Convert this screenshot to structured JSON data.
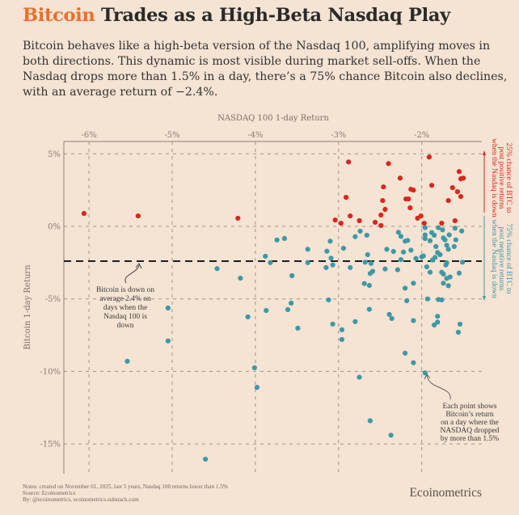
{
  "title": {
    "accent": "Bitcoin",
    "rest": " Trades as a High-Beta Nasdaq Play"
  },
  "subtitle": "Bitcoin behaves like a high-beta version of the Nasdaq 100, amplifying moves in both directions. This dynamic is most visible during market sell-offs. When the Nasdaq drops more than 1.5% in a day, there’s a 75% chance Bitcoin also declines, with an average return of −2.4%.",
  "colors": {
    "background": "#f5e3d3",
    "accent": "#e8702a",
    "positive": "#d9271c",
    "negative": "#3e98a6",
    "mean_line": "#1e1e1e"
  },
  "annotations": {
    "mean": [
      "Bitcoin is down on",
      "average 2.4% on",
      "days when the",
      "Nasdaq 100 is",
      "down"
    ],
    "point": [
      "Each point shows",
      "Bitcoin’s return",
      "on a day where the",
      "NASDAQ dropped",
      "by more than 1.5%"
    ],
    "positive_side": [
      "25% chance of BTC to",
      "post positive returns",
      "when the Nasdaq is down"
    ],
    "negative_side": [
      "75% chance of BTC to",
      "post negative returns",
      "when the Nasdaq is down"
    ]
  },
  "footer": {
    "notes": "Notes: created on November 01, 2025, last 5 years, Nasdaq 100 returns lower than 1.5%",
    "source": "Source: Ecoinometrics",
    "by": "By: @ecoinometrics, ecoinometrics.substack.com",
    "brand": "Ecoinometrics"
  },
  "chart_data": {
    "type": "scatter",
    "xlabel": "NASDAQ 100 1-day Return",
    "ylabel": "Bitcoin 1-day Return",
    "x_axis_position": "top",
    "xlim": [
      -6.35,
      -1.3
    ],
    "ylim": [
      -16.8,
      5.8
    ],
    "x_ticks": [
      -6,
      -5,
      -4,
      -3,
      -2
    ],
    "x_tick_labels": [
      "-6%",
      "-5%",
      "-4%",
      "-3%",
      "-2%"
    ],
    "y_ticks": [
      5,
      0,
      -5,
      -10,
      -15
    ],
    "y_tick_labels": [
      "5%",
      "0%",
      "-5%",
      "-10%",
      "-15%"
    ],
    "grid": true,
    "mean_line": -2.4,
    "series": [
      {
        "color": "#d9271c",
        "points": [
          [
            -6.06,
            0.89
          ],
          [
            -5.41,
            0.72
          ],
          [
            -4.21,
            0.56
          ],
          [
            -3.04,
            0.44
          ],
          [
            -2.97,
            0.22
          ],
          [
            -2.88,
            4.44
          ],
          [
            -2.91,
            2.0
          ],
          [
            -2.86,
            0.72
          ],
          [
            -2.75,
            0.39
          ],
          [
            -2.56,
            0.28
          ],
          [
            -2.49,
            0.78
          ],
          [
            -2.49,
            0.06
          ],
          [
            -2.47,
            1.78
          ],
          [
            -2.46,
            2.72
          ],
          [
            -2.44,
            1.17
          ],
          [
            -2.4,
            4.33
          ],
          [
            -2.26,
            3.33
          ],
          [
            -2.19,
            1.89
          ],
          [
            -2.16,
            1.89
          ],
          [
            -2.14,
            1.28
          ],
          [
            -2.13,
            2.56
          ],
          [
            -2.1,
            2.5
          ],
          [
            -2.05,
            0.56
          ],
          [
            -2.01,
            0.72
          ],
          [
            -1.97,
            0.22
          ],
          [
            -1.91,
            4.78
          ],
          [
            -1.88,
            2.83
          ],
          [
            -1.76,
            0.22
          ],
          [
            -1.68,
            1.78
          ],
          [
            -1.63,
            2.67
          ],
          [
            -1.6,
            0.39
          ],
          [
            -1.57,
            2.39
          ],
          [
            -1.55,
            3.78
          ],
          [
            -1.53,
            2.06
          ],
          [
            -1.53,
            3.28
          ],
          [
            -1.5,
            3.33
          ]
        ]
      },
      {
        "color": "#3e98a6",
        "points": [
          [
            -3.1,
            -1.02
          ],
          [
            -3.14,
            -1.71
          ],
          [
            -3.09,
            -2.19
          ],
          [
            -3.07,
            -2.66
          ],
          [
            -3.15,
            -2.84
          ],
          [
            -3.12,
            -5.07
          ],
          [
            -3.37,
            -1.58
          ],
          [
            -2.94,
            -1.51
          ],
          [
            -2.86,
            -2.84
          ],
          [
            -2.8,
            -0.71
          ],
          [
            -2.74,
            -0.33
          ],
          [
            -2.66,
            -0.61
          ],
          [
            -2.65,
            -1.95
          ],
          [
            -2.68,
            -2.47
          ],
          [
            -2.61,
            -2.55
          ],
          [
            -2.59,
            -3.1
          ],
          [
            -2.62,
            -3.25
          ],
          [
            -2.69,
            -3.94
          ],
          [
            -2.63,
            -4.07
          ],
          [
            -2.63,
            -5.72
          ],
          [
            -2.44,
            -2.94
          ],
          [
            -2.42,
            -1.58
          ],
          [
            -2.34,
            -1.73
          ],
          [
            -2.29,
            -2.99
          ],
          [
            -2.28,
            -0.41
          ],
          [
            -2.25,
            -0.69
          ],
          [
            -2.2,
            -1.02
          ],
          [
            -2.17,
            -0.97
          ],
          [
            -2.22,
            -1.77
          ],
          [
            -2.13,
            -1.64
          ],
          [
            -2.25,
            -2.29
          ],
          [
            -2.2,
            -4.26
          ],
          [
            -2.1,
            -3.92
          ],
          [
            -2.18,
            -5.13
          ],
          [
            -2.07,
            -2.21
          ],
          [
            -2.0,
            -2.1
          ],
          [
            -1.96,
            -0.09
          ],
          [
            -1.96,
            -0.59
          ],
          [
            -1.96,
            -0.84
          ],
          [
            -1.9,
            -0.99
          ],
          [
            -1.88,
            -0.43
          ],
          [
            -1.85,
            -0.61
          ],
          [
            -1.8,
            -0.09
          ],
          [
            -1.75,
            -0.24
          ],
          [
            -1.74,
            -0.8
          ],
          [
            -1.72,
            -0.93
          ],
          [
            -1.67,
            -0.59
          ],
          [
            -1.6,
            -0.13
          ],
          [
            -1.52,
            -0.32
          ],
          [
            -1.59,
            -0.93
          ],
          [
            -1.7,
            -1.3
          ],
          [
            -1.68,
            -1.58
          ],
          [
            -1.61,
            -1.39
          ],
          [
            -1.83,
            -1.39
          ],
          [
            -1.81,
            -1.8
          ],
          [
            -1.78,
            -1.95
          ],
          [
            -1.84,
            -2.14
          ],
          [
            -1.87,
            -2.32
          ],
          [
            -1.98,
            -2.04
          ],
          [
            -1.94,
            -2.79
          ],
          [
            -1.9,
            -3.16
          ],
          [
            -1.71,
            -2.66
          ],
          [
            -1.7,
            -2.51
          ],
          [
            -1.76,
            -3.16
          ],
          [
            -1.74,
            -3.29
          ],
          [
            -1.7,
            -3.59
          ],
          [
            -1.66,
            -3.49
          ],
          [
            -1.74,
            -3.92
          ],
          [
            -1.68,
            -4.09
          ],
          [
            -1.55,
            -3.22
          ],
          [
            -1.51,
            -2.47
          ],
          [
            -1.93,
            -5.0
          ],
          [
            -1.8,
            -5.04
          ],
          [
            -1.76,
            -5.07
          ],
          [
            -3.74,
            -0.94
          ],
          [
            -3.65,
            -0.83
          ],
          [
            -3.88,
            -2.06
          ],
          [
            -3.82,
            -2.5
          ],
          [
            -4.46,
            -2.91
          ],
          [
            -4.18,
            -3.57
          ],
          [
            -3.56,
            -3.4
          ],
          [
            -3.37,
            -2.5
          ],
          [
            -5.05,
            -5.63
          ],
          [
            -5.05,
            -7.9
          ],
          [
            -5.54,
            -9.3
          ],
          [
            -4.09,
            -6.24
          ],
          [
            -4.01,
            -9.75
          ],
          [
            -3.98,
            -11.1
          ],
          [
            -4.6,
            -16.05
          ],
          [
            -3.87,
            -5.8
          ],
          [
            -3.61,
            -5.74
          ],
          [
            -3.57,
            -5.29
          ],
          [
            -3.49,
            -7.02
          ],
          [
            -3.07,
            -6.74
          ],
          [
            -2.96,
            -7.13
          ],
          [
            -2.96,
            -7.8
          ],
          [
            -2.8,
            -6.57
          ],
          [
            -2.75,
            -10.4
          ],
          [
            -2.62,
            -13.4
          ],
          [
            -2.37,
            -14.4
          ],
          [
            -2.39,
            -6.07
          ],
          [
            -2.36,
            -6.35
          ],
          [
            -2.2,
            -8.74
          ],
          [
            -2.1,
            -9.4
          ],
          [
            -1.96,
            -10.1
          ],
          [
            -2.1,
            -6.5
          ],
          [
            -1.81,
            -6.2
          ],
          [
            -1.85,
            -6.8
          ],
          [
            -1.81,
            -6.6
          ],
          [
            -1.54,
            -6.74
          ],
          [
            -1.56,
            -7.3
          ]
        ]
      }
    ]
  }
}
